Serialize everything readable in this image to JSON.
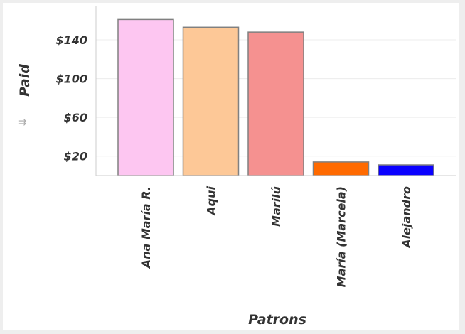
{
  "chart_data": {
    "type": "bar",
    "categories": [
      "Ana María R.",
      "Aqui",
      "Marilú",
      "María (Marcela)",
      "Alejandro"
    ],
    "values": [
      161,
      153,
      148,
      14,
      11
    ],
    "colors": [
      "#fdc6f1",
      "#fdc897",
      "#f59190",
      "#ff6a00",
      "#0a00ff"
    ],
    "xlabel": "Patrons",
    "ylabel": "Paid",
    "ylim": [
      0,
      170
    ],
    "yticks": [
      20,
      60,
      100,
      140
    ],
    "ytick_labels": [
      "$20",
      "$60",
      "$100",
      "$140"
    ],
    "grid": true,
    "bar_border_color": "#808080",
    "sort_icon": "sort-icon"
  }
}
